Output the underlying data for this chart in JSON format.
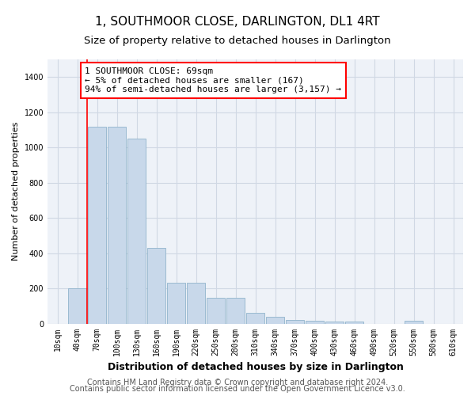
{
  "title": "1, SOUTHMOOR CLOSE, DARLINGTON, DL1 4RT",
  "subtitle": "Size of property relative to detached houses in Darlington",
  "xlabel": "Distribution of detached houses by size in Darlington",
  "ylabel": "Number of detached properties",
  "bar_color": "#c8d8ea",
  "bar_edge_color": "#90b4cc",
  "categories": [
    "10sqm",
    "40sqm",
    "70sqm",
    "100sqm",
    "130sqm",
    "160sqm",
    "190sqm",
    "220sqm",
    "250sqm",
    "280sqm",
    "310sqm",
    "340sqm",
    "370sqm",
    "400sqm",
    "430sqm",
    "460sqm",
    "490sqm",
    "520sqm",
    "550sqm",
    "580sqm",
    "610sqm"
  ],
  "values": [
    0,
    200,
    1120,
    1120,
    1050,
    430,
    230,
    230,
    145,
    145,
    60,
    40,
    20,
    15,
    10,
    10,
    0,
    0,
    15,
    0,
    0
  ],
  "ylim": [
    0,
    1500
  ],
  "yticks": [
    0,
    200,
    400,
    600,
    800,
    1000,
    1200,
    1400
  ],
  "vline_x": 1.5,
  "annotation_text": "1 SOUTHMOOR CLOSE: 69sqm\n← 5% of detached houses are smaller (167)\n94% of semi-detached houses are larger (3,157) →",
  "footer_line1": "Contains HM Land Registry data © Crown copyright and database right 2024.",
  "footer_line2": "Contains public sector information licensed under the Open Government Licence v3.0.",
  "plot_bg_color": "#eef2f8",
  "grid_color": "#d0d8e4",
  "title_fontsize": 11,
  "subtitle_fontsize": 9.5,
  "ylabel_fontsize": 8,
  "xlabel_fontsize": 9,
  "tick_fontsize": 7,
  "footer_fontsize": 7,
  "annotation_fontsize": 8
}
